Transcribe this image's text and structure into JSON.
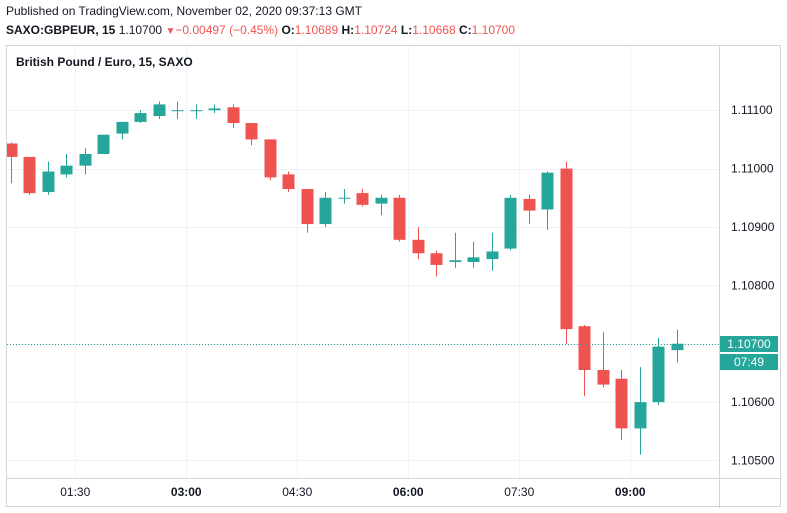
{
  "header": {
    "published": "Published on TradingView.com, November 02, 2020 09:37:13 GMT",
    "symbol": "SAXO:GBPEUR, 15",
    "last": "1.10700",
    "change_arrow": "▼",
    "change": "−0.00497 (−0.45%)",
    "o_label": "O:",
    "o_value": "1.10689",
    "h_label": "H:",
    "h_value": "1.10724",
    "l_label": "L:",
    "l_value": "1.10668",
    "c_label": "C:",
    "c_value": "1.10700"
  },
  "chart_title": "British Pound / Euro, 15, SAXO",
  "current_price_label": "1.10700",
  "countdown_label": "07:49",
  "colors": {
    "up": "#26a69a",
    "down": "#ef5350",
    "grid": "#f0f3fa",
    "priceline": "#26a69a"
  },
  "chart_data": {
    "type": "candlestick",
    "title": "British Pound / Euro, 15, SAXO",
    "interval_minutes": 15,
    "ylim": [
      1.1047,
      1.1121
    ],
    "y_ticks": [
      "1.11100",
      "1.11000",
      "1.10900",
      "1.10800",
      "1.10700",
      "1.10600",
      "1.10500"
    ],
    "x_ticks": [
      {
        "label": "01:30",
        "index": 3.5,
        "bold": false
      },
      {
        "label": "03:00",
        "index": 9.5,
        "bold": true
      },
      {
        "label": "04:30",
        "index": 15.5,
        "bold": false
      },
      {
        "label": "06:00",
        "index": 21.5,
        "bold": true
      },
      {
        "label": "07:30",
        "index": 27.5,
        "bold": false
      },
      {
        "label": "09:00",
        "index": 33.5,
        "bold": true
      }
    ],
    "current_price": 1.107,
    "candles": [
      {
        "o": 1.11043,
        "h": 1.11045,
        "l": 1.10975,
        "c": 1.1102
      },
      {
        "o": 1.1102,
        "h": 1.1102,
        "l": 1.10955,
        "c": 1.10958
      },
      {
        "o": 1.1096,
        "h": 1.11012,
        "l": 1.10955,
        "c": 1.10995
      },
      {
        "o": 1.1099,
        "h": 1.11025,
        "l": 1.10985,
        "c": 1.11005
      },
      {
        "o": 1.11005,
        "h": 1.11035,
        "l": 1.1099,
        "c": 1.11025
      },
      {
        "o": 1.11025,
        "h": 1.11058,
        "l": 1.11025,
        "c": 1.11058
      },
      {
        "o": 1.1106,
        "h": 1.1108,
        "l": 1.1105,
        "c": 1.1108
      },
      {
        "o": 1.1108,
        "h": 1.111,
        "l": 1.11078,
        "c": 1.11095
      },
      {
        "o": 1.1109,
        "h": 1.11115,
        "l": 1.11085,
        "c": 1.1111
      },
      {
        "o": 1.111,
        "h": 1.11115,
        "l": 1.11085,
        "c": 1.111
      },
      {
        "o": 1.111,
        "h": 1.1111,
        "l": 1.11085,
        "c": 1.111
      },
      {
        "o": 1.111,
        "h": 1.1111,
        "l": 1.11095,
        "c": 1.11103
      },
      {
        "o": 1.11105,
        "h": 1.1111,
        "l": 1.1107,
        "c": 1.11078
      },
      {
        "o": 1.11078,
        "h": 1.11078,
        "l": 1.1104,
        "c": 1.1105
      },
      {
        "o": 1.1105,
        "h": 1.1105,
        "l": 1.1098,
        "c": 1.10985
      },
      {
        "o": 1.1099,
        "h": 1.10995,
        "l": 1.1096,
        "c": 1.10965
      },
      {
        "o": 1.10965,
        "h": 1.10965,
        "l": 1.1089,
        "c": 1.10905
      },
      {
        "o": 1.10905,
        "h": 1.1096,
        "l": 1.109,
        "c": 1.1095
      },
      {
        "o": 1.1095,
        "h": 1.10965,
        "l": 1.1094,
        "c": 1.1095
      },
      {
        "o": 1.10958,
        "h": 1.10965,
        "l": 1.10935,
        "c": 1.10938
      },
      {
        "o": 1.1094,
        "h": 1.10955,
        "l": 1.1092,
        "c": 1.1095
      },
      {
        "o": 1.1095,
        "h": 1.10955,
        "l": 1.10875,
        "c": 1.10878
      },
      {
        "o": 1.10878,
        "h": 1.109,
        "l": 1.10845,
        "c": 1.10855
      },
      {
        "o": 1.10855,
        "h": 1.1086,
        "l": 1.10815,
        "c": 1.10835
      },
      {
        "o": 1.1084,
        "h": 1.1089,
        "l": 1.1083,
        "c": 1.10843
      },
      {
        "o": 1.1084,
        "h": 1.10875,
        "l": 1.1083,
        "c": 1.10848
      },
      {
        "o": 1.10845,
        "h": 1.1089,
        "l": 1.10825,
        "c": 1.10858
      },
      {
        "o": 1.10863,
        "h": 1.10955,
        "l": 1.1086,
        "c": 1.1095
      },
      {
        "o": 1.10948,
        "h": 1.10955,
        "l": 1.10905,
        "c": 1.10928
      },
      {
        "o": 1.1093,
        "h": 1.10995,
        "l": 1.10895,
        "c": 1.10993
      },
      {
        "o": 1.11,
        "h": 1.11012,
        "l": 1.107,
        "c": 1.10725
      },
      {
        "o": 1.1073,
        "h": 1.10732,
        "l": 1.1061,
        "c": 1.10655
      },
      {
        "o": 1.10655,
        "h": 1.1072,
        "l": 1.10625,
        "c": 1.1063
      },
      {
        "o": 1.1064,
        "h": 1.10655,
        "l": 1.10535,
        "c": 1.10555
      },
      {
        "o": 1.10555,
        "h": 1.1066,
        "l": 1.1051,
        "c": 1.106
      },
      {
        "o": 1.106,
        "h": 1.1071,
        "l": 1.10595,
        "c": 1.10695
      },
      {
        "o": 1.10689,
        "h": 1.10724,
        "l": 1.10668,
        "c": 1.107
      }
    ]
  }
}
